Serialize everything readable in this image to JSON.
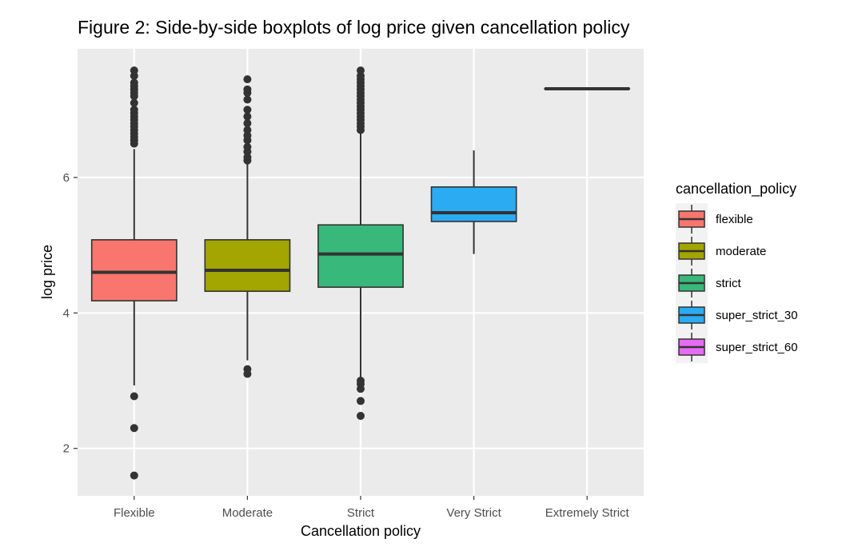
{
  "chart_data": {
    "type": "boxplot",
    "title": "Figure 2: Side-by-side boxplots of log price given cancellation policy",
    "xlabel": "Cancellation policy",
    "ylabel": "log price",
    "ylim": [
      1.3,
      7.9
    ],
    "yticks": [
      2,
      4,
      6
    ],
    "grid": true,
    "legend": {
      "title": "cancellation_policy",
      "position": "right",
      "entries": [
        {
          "label": "flexible",
          "color": "#F8766D"
        },
        {
          "label": "moderate",
          "color": "#A3A500"
        },
        {
          "label": "strict",
          "color": "#39B87B"
        },
        {
          "label": "super_strict_30",
          "color": "#2AABF2"
        },
        {
          "label": "super_strict_60",
          "color": "#E76BF3"
        }
      ]
    },
    "categories": [
      "Flexible",
      "Moderate",
      "Strict",
      "Very Strict",
      "Extremely Strict"
    ],
    "boxes": [
      {
        "category": "Flexible",
        "fill": "#F8766D",
        "whisker_low": 2.93,
        "q1": 4.18,
        "median": 4.6,
        "q3": 5.08,
        "whisker_high": 6.42,
        "outliers": [
          6.5,
          6.55,
          6.6,
          6.65,
          6.7,
          6.75,
          6.8,
          6.85,
          6.9,
          6.95,
          7.0,
          7.1,
          7.2,
          7.25,
          7.3,
          7.35,
          7.4,
          7.5,
          7.58,
          2.77,
          2.3,
          1.6
        ]
      },
      {
        "category": "Moderate",
        "fill": "#A3A500",
        "whisker_low": 3.3,
        "q1": 4.32,
        "median": 4.63,
        "q3": 5.08,
        "whisker_high": 6.2,
        "outliers": [
          6.25,
          6.3,
          6.38,
          6.45,
          6.55,
          6.62,
          6.7,
          6.8,
          6.9,
          7.0,
          7.15,
          7.25,
          7.3,
          7.45,
          3.17,
          3.1
        ]
      },
      {
        "category": "Strict",
        "fill": "#39B87B",
        "whisker_low": 3.05,
        "q1": 4.38,
        "median": 4.87,
        "q3": 5.3,
        "whisker_high": 6.65,
        "outliers": [
          6.7,
          6.75,
          6.8,
          6.85,
          6.9,
          6.95,
          7.0,
          7.05,
          7.1,
          7.15,
          7.2,
          7.25,
          7.3,
          7.35,
          7.4,
          7.45,
          7.5,
          7.58,
          3.0,
          2.95,
          2.88,
          2.7,
          2.48
        ]
      },
      {
        "category": "Very Strict",
        "fill": "#2AABF2",
        "whisker_low": 4.87,
        "q1": 5.35,
        "median": 5.48,
        "q3": 5.86,
        "whisker_high": 6.4,
        "outliers": []
      },
      {
        "category": "Extremely Strict",
        "fill": "#E76BF3",
        "whisker_low": 7.31,
        "q1": 7.31,
        "median": 7.31,
        "q3": 7.31,
        "whisker_high": 7.31,
        "outliers": []
      }
    ]
  }
}
